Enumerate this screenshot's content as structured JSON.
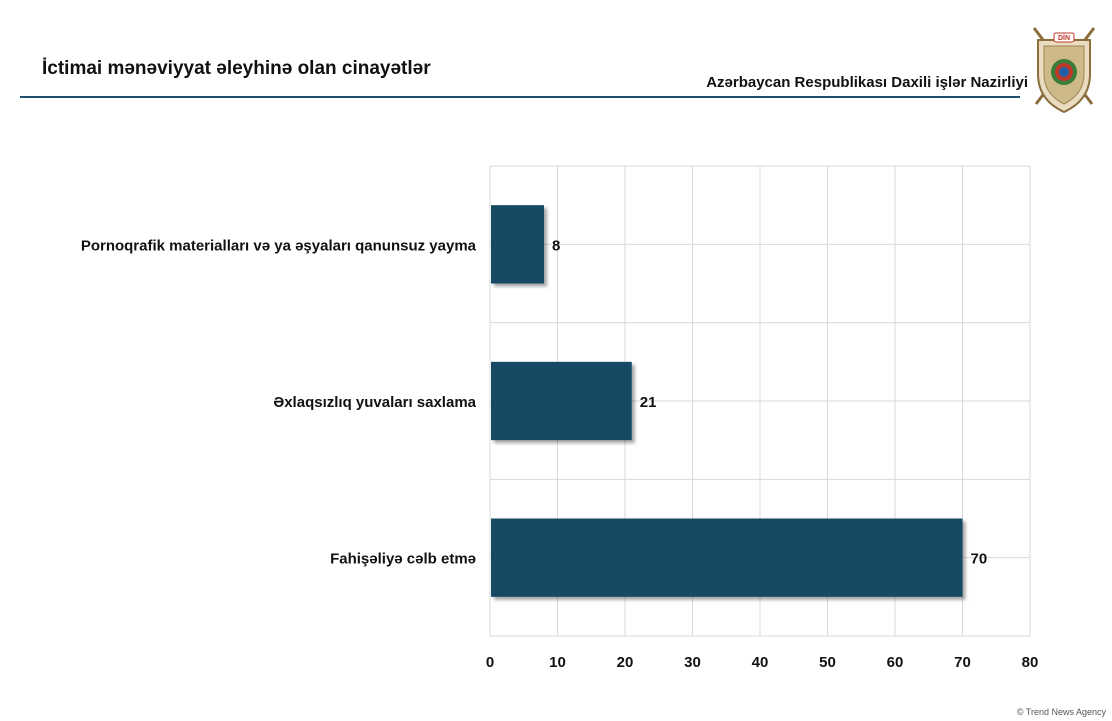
{
  "header": {
    "title": "İctimai mənəviyyat əleyhinə olan cinayətlər",
    "organization": "Azərbaycan Respublikası Daxili işlər Nazirliyi",
    "emblem_text": "DİN"
  },
  "footer": {
    "credit": "© Trend News Agency"
  },
  "colors": {
    "bar": "#134a64",
    "grid": "#d9d9d9",
    "rule": "#1f4f6b"
  },
  "chart_data": {
    "type": "bar",
    "orientation": "horizontal",
    "categories": [
      "Pornoqrafik materialları və ya əşyaları qanunsuz yayma",
      "Əxlaqsızlıq yuvaları saxlama",
      "Fahişəliyə cəlb etmə"
    ],
    "values": [
      8,
      21,
      70
    ],
    "xlim": [
      0,
      80
    ],
    "xticks": [
      0,
      10,
      20,
      30,
      40,
      50,
      60,
      70,
      80
    ],
    "grid": true,
    "data_labels": true
  }
}
